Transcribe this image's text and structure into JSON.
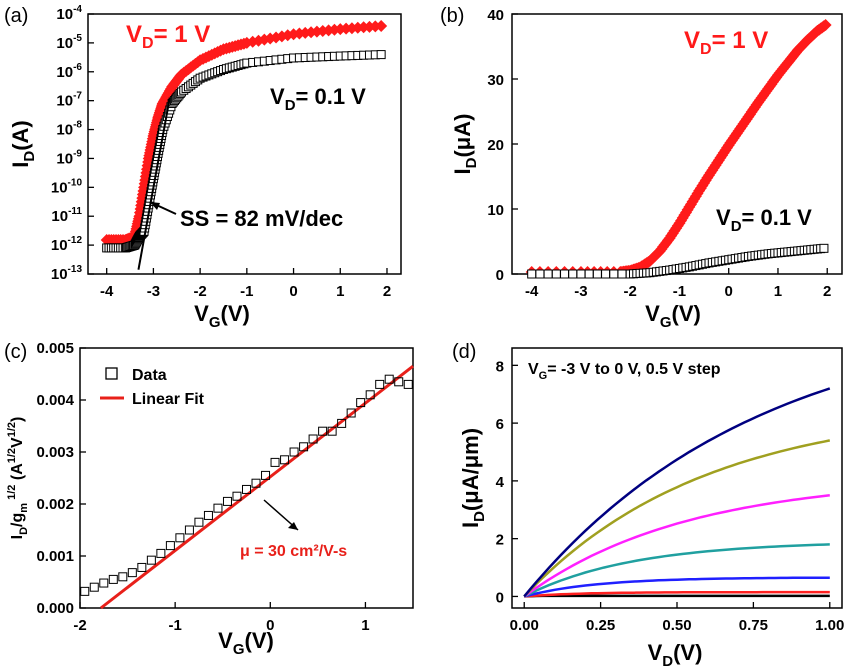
{
  "panels": [
    {
      "letter": "(a)"
    },
    {
      "letter": "(b)"
    },
    {
      "letter": "(c)"
    },
    {
      "letter": "(d)"
    }
  ],
  "colors": {
    "red": "#ff1a1a",
    "black": "#000000",
    "fit": "#e8201a"
  },
  "chart_data": [
    {
      "type": "scatter",
      "panel": "a",
      "yscale": "log",
      "xlabel": "V_G(V)",
      "ylabel": "I_D(A)",
      "xlim": [
        -4.4,
        2.3
      ],
      "ylim_exp": [
        -13,
        -4
      ],
      "xticks": [
        -4,
        -3,
        -2,
        -1,
        0,
        1,
        2
      ],
      "yticks_exp": [
        -13,
        -12,
        -11,
        -10,
        -9,
        -8,
        -7,
        -6,
        -5,
        -4
      ],
      "annotations": {
        "ss": "SS = 82 mV/dec"
      },
      "series": [
        {
          "name": "V_D= 1 V",
          "color": "#ff1a1a",
          "marker": "filled-diamond",
          "x": [
            -4.0,
            -3.6,
            -3.4,
            -3.3,
            -3.2,
            -3.1,
            -3.0,
            -2.9,
            -2.8,
            -2.6,
            -2.4,
            -2.0,
            -1.5,
            -1.0,
            0.0,
            1.0,
            2.0
          ],
          "y": [
            1.5e-12,
            1.5e-12,
            2e-12,
            1e-11,
            1e-10,
            1e-09,
            6e-09,
            2.5e-08,
            8e-08,
            3e-07,
            8e-07,
            2.5e-06,
            6e-06,
            1e-05,
            2e-05,
            3e-05,
            4e-05
          ]
        },
        {
          "name": "V_D= 0.1 V",
          "color": "#000000",
          "marker": "open-square",
          "x": [
            -4.0,
            -3.6,
            -3.4,
            -3.3,
            -3.2,
            -3.1,
            -3.0,
            -2.9,
            -2.8,
            -2.6,
            -2.4,
            -2.0,
            -1.5,
            -1.0,
            0.0,
            1.0,
            2.0
          ],
          "y": [
            8e-13,
            8e-13,
            1e-12,
            2e-12,
            3e-12,
            2.5e-11,
            2e-10,
            1.5e-09,
            1e-08,
            8e-08,
            2e-07,
            6e-07,
            1.2e-06,
            2e-06,
            3e-06,
            3.5e-06,
            4e-06
          ]
        }
      ],
      "fit_line": {
        "x": [
          -3.32,
          -2.65
        ],
        "y_exp": [
          -12.85,
          -6.9
        ]
      }
    },
    {
      "type": "scatter",
      "panel": "b",
      "xlabel": "V_G(V)",
      "ylabel": "I_D(μA)",
      "xlim": [
        -4.4,
        2.3
      ],
      "ylim": [
        0,
        40
      ],
      "xticks": [
        -4,
        -3,
        -2,
        -1,
        0,
        1,
        2
      ],
      "yticks": [
        0,
        10,
        20,
        30,
        40
      ],
      "series": [
        {
          "name": "V_D= 1 V",
          "color": "#ff1a1a",
          "marker": "filled-diamond",
          "x": [
            -4.0,
            -3.0,
            -2.2,
            -2.0,
            -1.8,
            -1.6,
            -1.4,
            -1.2,
            -1.0,
            -0.8,
            -0.6,
            -0.4,
            -0.2,
            0.0,
            0.2,
            0.4,
            0.6,
            0.8,
            1.0,
            1.2,
            1.4,
            1.6,
            1.8,
            2.0
          ],
          "y": [
            0.3,
            0.3,
            0.3,
            0.5,
            1.0,
            2.0,
            3.5,
            5.5,
            7.8,
            10.3,
            12.8,
            15.2,
            17.5,
            19.8,
            22.0,
            24.2,
            26.4,
            28.5,
            30.6,
            32.5,
            34.4,
            36.0,
            37.4,
            38.5
          ]
        },
        {
          "name": "V_D= 0.1 V",
          "color": "#000000",
          "marker": "open-square",
          "x": [
            -4.0,
            -3.0,
            -2.0,
            -1.6,
            -1.2,
            -0.8,
            -0.4,
            0.0,
            0.4,
            0.8,
            1.2,
            1.6,
            2.0
          ],
          "y": [
            0.0,
            0.0,
            0.0,
            0.2,
            0.6,
            1.1,
            1.7,
            2.2,
            2.7,
            3.1,
            3.4,
            3.7,
            4.0
          ]
        }
      ]
    },
    {
      "type": "scatter",
      "panel": "c",
      "xlabel": "V_G(V)",
      "ylabel": "I_D/g_m^1/2 (A^1/2V^1/2)",
      "xlim": [
        -2,
        1.5
      ],
      "ylim": [
        0,
        0.005
      ],
      "xticks": [
        -2,
        -1,
        0,
        1
      ],
      "yticks": [
        0.0,
        0.001,
        0.002,
        0.003,
        0.004,
        0.005
      ],
      "legend": {
        "data": "Data",
        "fit": "Linear Fit"
      },
      "annotation": "μ = 30 cm²/V-s",
      "series": [
        {
          "name": "Data",
          "color": "#000000",
          "marker": "open-square",
          "x": [
            -1.95,
            -1.85,
            -1.75,
            -1.65,
            -1.55,
            -1.45,
            -1.35,
            -1.25,
            -1.15,
            -1.05,
            -0.95,
            -0.85,
            -0.75,
            -0.65,
            -0.55,
            -0.45,
            -0.35,
            -0.25,
            -0.15,
            -0.05,
            0.05,
            0.15,
            0.25,
            0.35,
            0.45,
            0.55,
            0.65,
            0.75,
            0.85,
            0.95,
            1.05,
            1.15,
            1.25,
            1.35,
            1.45
          ],
          "y": [
            0.00032,
            0.0004,
            0.00048,
            0.00055,
            0.0006,
            0.00068,
            0.00078,
            0.00092,
            0.00105,
            0.0012,
            0.00135,
            0.0015,
            0.00165,
            0.00178,
            0.00192,
            0.00205,
            0.00215,
            0.00228,
            0.0024,
            0.00255,
            0.0028,
            0.00285,
            0.003,
            0.0031,
            0.00325,
            0.0034,
            0.0034,
            0.00355,
            0.00375,
            0.00395,
            0.0041,
            0.0043,
            0.0044,
            0.00435,
            0.0043
          ]
        },
        {
          "name": "Linear Fit",
          "color": "#e8201a",
          "type": "line",
          "x": [
            -1.78,
            1.5
          ],
          "y": [
            0.0,
            0.00465
          ]
        }
      ]
    },
    {
      "type": "line",
      "panel": "d",
      "xlabel": "V_D(V)",
      "ylabel": "I_D(μA/μm)",
      "annotation": "V_G= -3 V to 0 V, 0.5 V step",
      "xlim": [
        -0.04,
        1.04
      ],
      "ylim": [
        -0.4,
        8.6
      ],
      "xticks": [
        0.0,
        0.25,
        0.5,
        0.75,
        1.0
      ],
      "yticks": [
        0,
        2,
        4,
        6,
        8
      ],
      "series": [
        {
          "vsat": 0.0,
          "color": "#000000",
          "isat": 0.02
        },
        {
          "vsat": 0.3,
          "color": "#ff2020",
          "isat": 0.15
        },
        {
          "vsat": 0.4,
          "color": "#2020ff",
          "isat": 0.65
        },
        {
          "vsat": 0.6,
          "color": "#20a0a0",
          "isat": 1.8
        },
        {
          "vsat": 0.9,
          "color": "#ff20ff",
          "isat": 3.5
        },
        {
          "vsat": 1.0,
          "color": "#a0a020",
          "isat": 5.4
        },
        {
          "vsat": 1.3,
          "color": "#000080",
          "isat": 7.2
        }
      ]
    }
  ]
}
